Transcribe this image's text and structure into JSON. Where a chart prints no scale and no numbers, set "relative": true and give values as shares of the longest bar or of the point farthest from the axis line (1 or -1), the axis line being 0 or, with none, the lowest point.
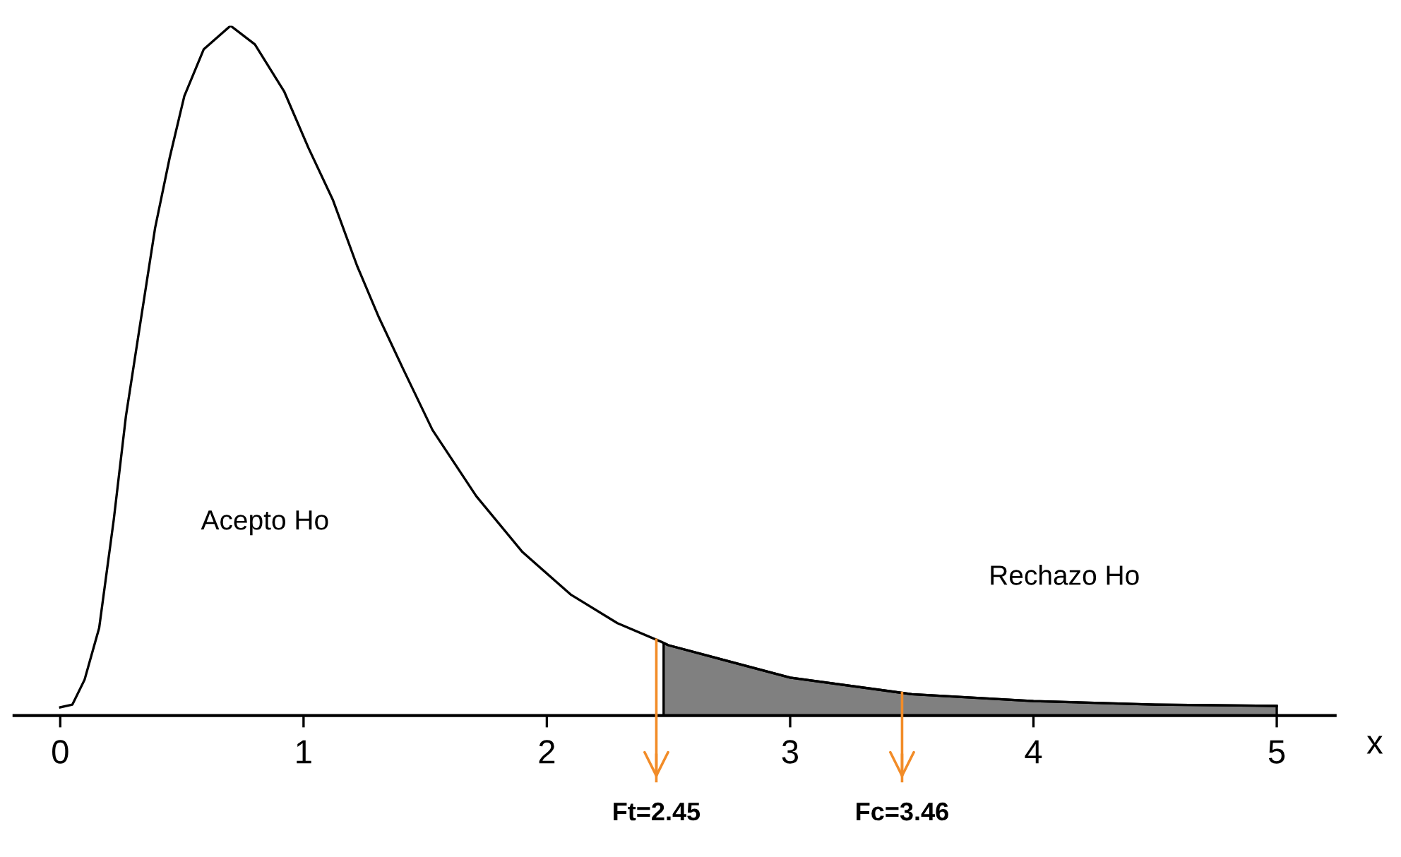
{
  "chart_data": {
    "type": "line",
    "relative": true,
    "xlabel": "x",
    "x": [
      0,
      0.05,
      0.1,
      0.16,
      0.22,
      0.27,
      0.33,
      0.39,
      0.45,
      0.51,
      0.59,
      0.7,
      0.8,
      0.92,
      1.02,
      1.12,
      1.22,
      1.31,
      1.41,
      1.53,
      1.71,
      1.9,
      2.1,
      2.29,
      2.47,
      2.5,
      3.0,
      3.5,
      4.0,
      4.5,
      5.0
    ],
    "series": [
      {
        "color": "#000000",
        "values": [
          0.012,
          0.016,
          0.052,
          0.127,
          0.284,
          0.434,
          0.571,
          0.707,
          0.809,
          0.898,
          0.966,
          1,
          0.973,
          0.905,
          0.823,
          0.748,
          0.652,
          0.577,
          0.502,
          0.414,
          0.318,
          0.237,
          0.175,
          0.134,
          0.107,
          0.102,
          0.055,
          0.031,
          0.021,
          0.016,
          0.014
        ]
      },
      {
        "type": "area",
        "color": "#808080",
        "x": [
          2.48,
          2.5,
          3.0,
          3.5,
          4.0,
          4.5,
          5.0
        ],
        "values": [
          0.105,
          0.102,
          0.055,
          0.031,
          0.021,
          0.016,
          0.014
        ]
      }
    ],
    "xlim": [
      -0.19,
      5.24
    ],
    "xticks": [
      0,
      1,
      2,
      3,
      4,
      5
    ],
    "tick_labels": "x",
    "grid": false,
    "marker": "none",
    "line_style": "solid",
    "ref_lines": [
      {
        "axis": "x",
        "value": 2.45,
        "label": "Ft=2.45",
        "color": "#f28c28"
      },
      {
        "axis": "x",
        "value": 3.46,
        "label": "Fc=3.46",
        "color": "#f28c28"
      }
    ],
    "annotations": [
      "Acepto Ho",
      "Rechazo Ho"
    ]
  }
}
